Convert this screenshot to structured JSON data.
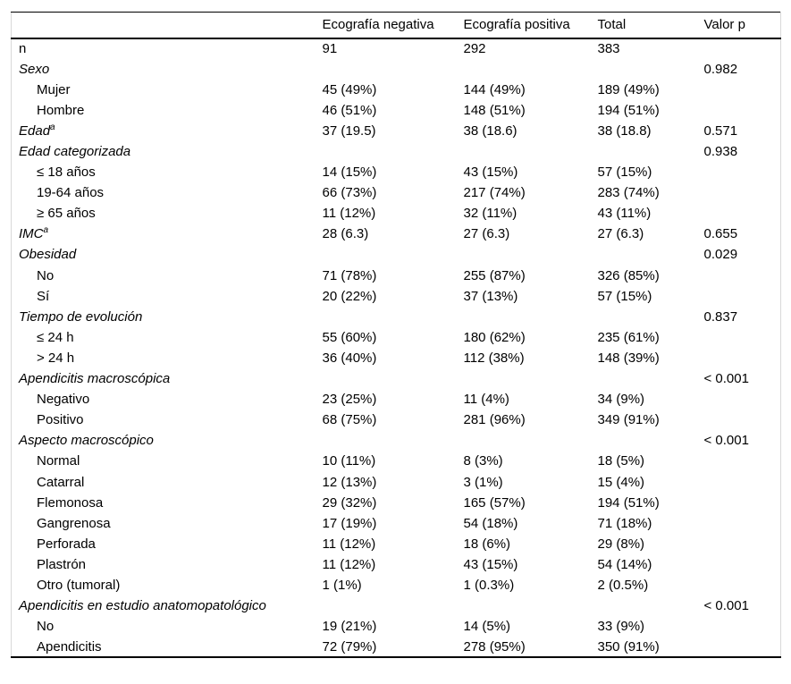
{
  "table": {
    "columns": [
      "",
      "Ecografía negativa",
      "Ecografía positiva",
      "Total",
      "Valor p"
    ],
    "colors": {
      "rule": "#000000",
      "frame": "#d9d9d9",
      "text": "#000000"
    },
    "rows": [
      {
        "label": "n",
        "type": "plain",
        "values": [
          "91",
          "292",
          "383"
        ],
        "p": ""
      },
      {
        "label": "Sexo",
        "type": "category",
        "values": [
          "",
          "",
          ""
        ],
        "p": "0.982"
      },
      {
        "label": "Mujer",
        "type": "item",
        "values": [
          "45 (49%)",
          "144 (49%)",
          "189 (49%)"
        ],
        "p": ""
      },
      {
        "label": "Hombre",
        "type": "item",
        "values": [
          "46 (51%)",
          "148 (51%)",
          "194 (51%)"
        ],
        "p": ""
      },
      {
        "label": "Edad",
        "sup": "a",
        "type": "category",
        "values": [
          "37 (19.5)",
          "38 (18.6)",
          "38 (18.8)"
        ],
        "p": "0.571"
      },
      {
        "label": "Edad categorizada",
        "type": "category",
        "values": [
          "",
          "",
          ""
        ],
        "p": "0.938"
      },
      {
        "label": "≤ 18 años",
        "type": "item",
        "values": [
          "14 (15%)",
          "43 (15%)",
          "57 (15%)"
        ],
        "p": ""
      },
      {
        "label": "19-64 años",
        "type": "item",
        "values": [
          "66 (73%)",
          "217 (74%)",
          "283 (74%)"
        ],
        "p": ""
      },
      {
        "label": "≥ 65 años",
        "type": "item",
        "values": [
          "11 (12%)",
          "32 (11%)",
          "43 (11%)"
        ],
        "p": ""
      },
      {
        "label": "IMC",
        "sup": "a",
        "type": "category",
        "values": [
          "28 (6.3)",
          "27 (6.3)",
          "27 (6.3)"
        ],
        "p": "0.655"
      },
      {
        "label": "Obesidad",
        "type": "category",
        "values": [
          "",
          "",
          ""
        ],
        "p": "0.029"
      },
      {
        "label": "No",
        "type": "item",
        "values": [
          "71 (78%)",
          "255 (87%)",
          "326 (85%)"
        ],
        "p": ""
      },
      {
        "label": "Sí",
        "type": "item",
        "values": [
          "20 (22%)",
          "37 (13%)",
          "57 (15%)"
        ],
        "p": ""
      },
      {
        "label": "Tiempo de evolución",
        "type": "category",
        "values": [
          "",
          "",
          ""
        ],
        "p": "0.837"
      },
      {
        "label": "≤ 24 h",
        "type": "item",
        "values": [
          "55 (60%)",
          "180 (62%)",
          "235 (61%)"
        ],
        "p": ""
      },
      {
        "label": "> 24 h",
        "type": "item",
        "values": [
          "36 (40%)",
          "112 (38%)",
          "148 (39%)"
        ],
        "p": ""
      },
      {
        "label": "Apendicitis macroscópica",
        "type": "category",
        "values": [
          "",
          "",
          ""
        ],
        "p": "< 0.001"
      },
      {
        "label": "Negativo",
        "type": "item",
        "values": [
          "23 (25%)",
          "11 (4%)",
          "34 (9%)"
        ],
        "p": ""
      },
      {
        "label": "Positivo",
        "type": "item",
        "values": [
          "68 (75%)",
          "281 (96%)",
          "349 (91%)"
        ],
        "p": ""
      },
      {
        "label": "Aspecto macroscópico",
        "type": "category",
        "values": [
          "",
          "",
          ""
        ],
        "p": "< 0.001"
      },
      {
        "label": "Normal",
        "type": "item",
        "values": [
          "10 (11%)",
          "8 (3%)",
          "18 (5%)"
        ],
        "p": ""
      },
      {
        "label": "Catarral",
        "type": "item",
        "values": [
          "12 (13%)",
          "3 (1%)",
          "15 (4%)"
        ],
        "p": ""
      },
      {
        "label": "Flemonosa",
        "type": "item",
        "values": [
          "29 (32%)",
          "165 (57%)",
          "194 (51%)"
        ],
        "p": ""
      },
      {
        "label": "Gangrenosa",
        "type": "item",
        "values": [
          "17 (19%)",
          "54 (18%)",
          "71 (18%)"
        ],
        "p": ""
      },
      {
        "label": "Perforada",
        "type": "item",
        "values": [
          "11 (12%)",
          "18 (6%)",
          "29 (8%)"
        ],
        "p": ""
      },
      {
        "label": "Plastrón",
        "type": "item",
        "values": [
          "11 (12%)",
          "43 (15%)",
          "54 (14%)"
        ],
        "p": ""
      },
      {
        "label": "Otro (tumoral)",
        "type": "item",
        "values": [
          "1 (1%)",
          "1 (0.3%)",
          "2 (0.5%)"
        ],
        "p": ""
      },
      {
        "label": "Apendicitis en estudio anatomopatológico",
        "type": "category",
        "values": [
          "",
          "",
          ""
        ],
        "p": "< 0.001"
      },
      {
        "label": "No",
        "type": "item",
        "values": [
          "19 (21%)",
          "14 (5%)",
          "33 (9%)"
        ],
        "p": ""
      },
      {
        "label": "Apendicitis",
        "type": "item",
        "values": [
          "72 (79%)",
          "278 (95%)",
          "350 (91%)"
        ],
        "p": ""
      }
    ]
  }
}
